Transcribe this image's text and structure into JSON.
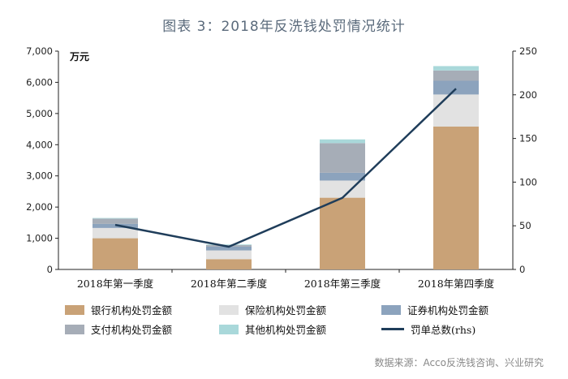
{
  "chart_data": {
    "type": "bar",
    "title": "图表 3：2018年反洗钱处罚情况统计",
    "left_unit": "万元",
    "categories": [
      "2018年第一季度",
      "2018年第二季度",
      "2018年第三季度",
      "2018年第四季度"
    ],
    "series": [
      {
        "name": "银行机构处罚金额",
        "axis": "left",
        "color": "#c9a277",
        "values": [
          1000,
          330,
          2300,
          4580
        ]
      },
      {
        "name": "保险机构处罚金额",
        "axis": "left",
        "color": "#e2e2e2",
        "values": [
          330,
          280,
          550,
          1030
        ]
      },
      {
        "name": "证券机构处罚金额",
        "axis": "left",
        "color": "#8ca3bd",
        "values": [
          130,
          120,
          250,
          440
        ]
      },
      {
        "name": "支付机构处罚金额",
        "axis": "left",
        "color": "#a6adb7",
        "values": [
          170,
          50,
          950,
          330
        ]
      },
      {
        "name": "其他机构处罚金额",
        "axis": "left",
        "color": "#a9d8da",
        "values": [
          20,
          20,
          120,
          140
        ]
      },
      {
        "name": "罚单总数(rhs)",
        "axis": "right",
        "type": "line",
        "color": "#1f3d5a",
        "values": [
          51,
          26,
          82,
          207
        ]
      }
    ],
    "left_axis": {
      "min": 0,
      "max": 7000,
      "ticks": [
        "0",
        "1,000",
        "2,000",
        "3,000",
        "4,000",
        "5,000",
        "6,000",
        "7,000"
      ]
    },
    "right_axis": {
      "min": 0,
      "max": 250,
      "ticks": [
        "0",
        "50",
        "100",
        "150",
        "200",
        "250"
      ]
    }
  },
  "source": "数据来源：Acco反洗钱咨询、兴业研究"
}
